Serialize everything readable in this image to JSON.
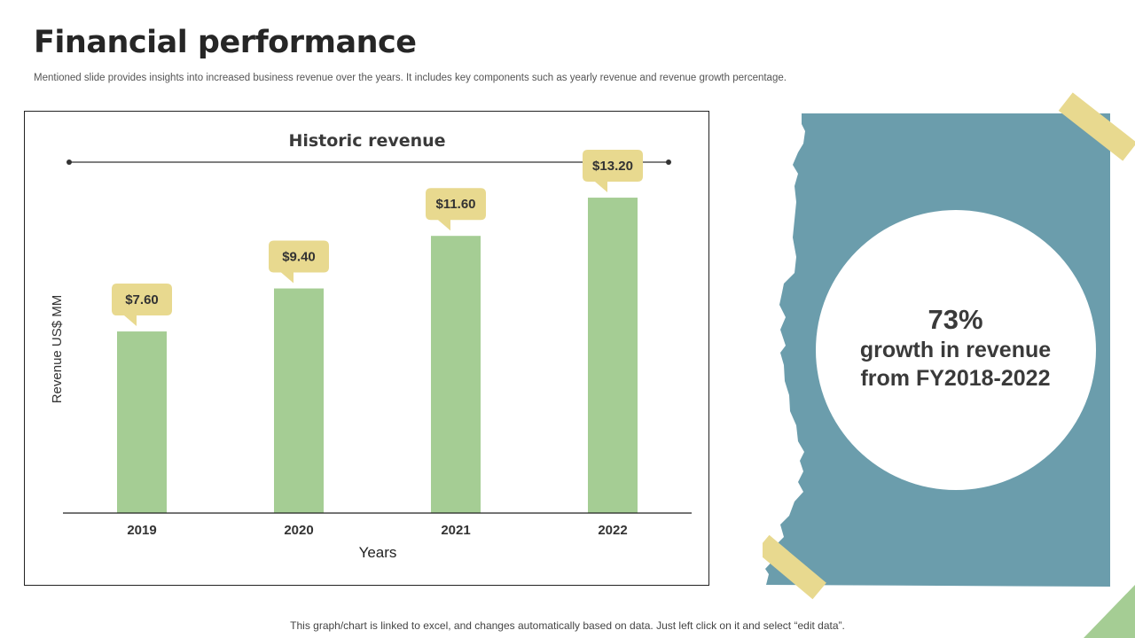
{
  "slide": {
    "title": "Financial performance",
    "subtitle": "Mentioned slide provides insights into increased business revenue over the years. It includes key components such as yearly revenue and revenue growth percentage.",
    "footnote": "This graph/chart is linked to excel, and changes automatically based on data. Just left click on it and select “edit data”."
  },
  "chart_data": {
    "type": "bar",
    "title": "Historic revenue",
    "categories": [
      "2019",
      "2020",
      "2021",
      "2022"
    ],
    "values": [
      7.6,
      9.4,
      11.6,
      13.2
    ],
    "data_labels": [
      "$7.60",
      "$9.40",
      "$11.60",
      "$13.20"
    ],
    "xlabel": "Years",
    "ylabel": "Revenue  US$ MM",
    "ylim": [
      0,
      14.5
    ],
    "grid": false,
    "legend": "none"
  },
  "callout": {
    "percent": "73%",
    "description": "growth in revenue from FY2018-2022"
  },
  "colors": {
    "bar": "#a5cd94",
    "label_bubble": "#e8d98f",
    "panel": "#6b9dac",
    "tape": "#e8d98f",
    "corner_leaf": "#a5cd94"
  }
}
